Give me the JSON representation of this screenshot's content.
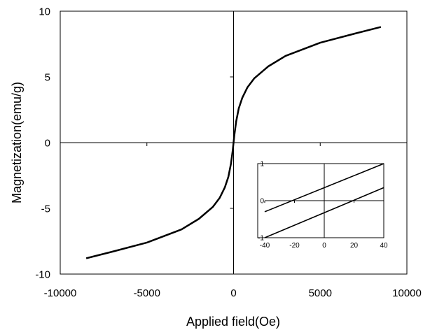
{
  "chart_data": [
    {
      "type": "line",
      "title": "",
      "xlabel": "Applied field(Oe)",
      "ylabel": "Magnetization(emu/g)",
      "xlim": [
        -10000,
        10000
      ],
      "ylim": [
        -10,
        10
      ],
      "x_ticks": [
        -10000,
        -5000,
        0,
        5000,
        10000
      ],
      "x_tick_labels": [
        "-10000",
        "-5000",
        "0",
        "5000",
        "10000"
      ],
      "y_ticks": [
        -10,
        -5,
        0,
        5,
        10
      ],
      "y_tick_labels": [
        "-10",
        "-5",
        "0",
        "5",
        "10"
      ],
      "grid": false,
      "legend": "none",
      "series": [
        {
          "x": [
            -8500,
            -7000,
            -5000,
            -3000,
            -2000,
            -1200,
            -800,
            -500,
            -300,
            -150,
            -50,
            0,
            50,
            150,
            300,
            500,
            800,
            1200,
            2000,
            3000,
            5000,
            7000,
            8500
          ],
          "y": [
            -8.8,
            -8.3,
            -7.6,
            -6.6,
            -5.8,
            -4.9,
            -4.2,
            -3.4,
            -2.6,
            -1.6,
            -0.6,
            0,
            0.6,
            1.6,
            2.6,
            3.4,
            4.2,
            4.9,
            5.8,
            6.6,
            7.6,
            8.3,
            8.8
          ]
        }
      ]
    },
    {
      "type": "line",
      "title": "",
      "xlabel": "",
      "ylabel": "",
      "xlim": [
        -40,
        40
      ],
      "ylim": [
        -1,
        1
      ],
      "x_ticks": [
        -40,
        -20,
        0,
        20,
        40
      ],
      "x_tick_labels": [
        "-40",
        "-20",
        "0",
        "20",
        "40"
      ],
      "y_ticks": [
        -1,
        0,
        1
      ],
      "y_tick_labels": [
        "-1",
        "0",
        "1"
      ],
      "grid": false,
      "legend": "none",
      "series": [
        {
          "x": [
            -40,
            40
          ],
          "y": [
            -0.3,
            1.0
          ]
        },
        {
          "x": [
            -40,
            40
          ],
          "y": [
            -1.0,
            0.35
          ]
        }
      ]
    }
  ]
}
